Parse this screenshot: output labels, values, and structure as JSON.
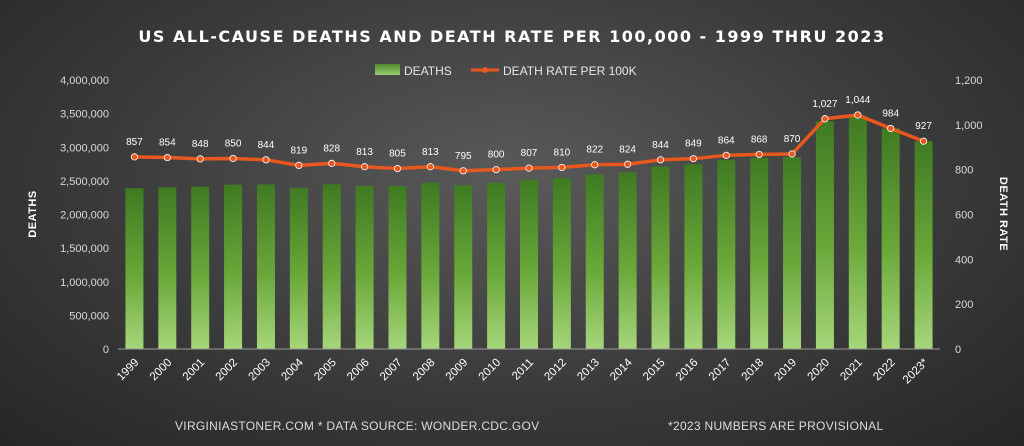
{
  "chart_data": {
    "type": "bar-line-combo",
    "title": "US ALL-CAUSE DEATHS AND DEATH RATE PER 100,000 - 1999 THRU 2023",
    "categories": [
      "1999",
      "2000",
      "2001",
      "2002",
      "2003",
      "2004",
      "2005",
      "2006",
      "2007",
      "2008",
      "2009",
      "2010",
      "2011",
      "2012",
      "2013",
      "2014",
      "2015",
      "2016",
      "2017",
      "2018",
      "2019",
      "2020",
      "2021",
      "2022",
      "2023*"
    ],
    "series": [
      {
        "name": "DEATHS",
        "type": "bar",
        "axis": "left",
        "color": "#6fae3a",
        "values": [
          2391399,
          2403351,
          2416425,
          2443387,
          2448288,
          2397615,
          2448017,
          2426264,
          2423712,
          2471984,
          2437163,
          2468435,
          2515458,
          2543279,
          2596993,
          2626418,
          2712630,
          2744248,
          2813503,
          2839205,
          2854838,
          3383729,
          3464231,
          3279857,
          3090964
        ]
      },
      {
        "name": "DEATH RATE PER 100K",
        "type": "line",
        "axis": "right",
        "color": "#e8571e",
        "values": [
          857,
          854,
          848,
          850,
          844,
          819,
          828,
          813,
          805,
          813,
          795,
          800,
          807,
          810,
          822,
          824,
          844,
          849,
          864,
          868,
          870,
          1027,
          1044,
          984,
          927
        ],
        "labels": [
          "857",
          "854",
          "848",
          "850",
          "844",
          "819",
          "828",
          "813",
          "805",
          "813",
          "795",
          "800",
          "807",
          "810",
          "822",
          "824",
          "844",
          "849",
          "864",
          "868",
          "870",
          "1,027",
          "1,044",
          "984",
          "927"
        ]
      }
    ],
    "ylabel": "DEATHS",
    "y2label": "DEATH RATE",
    "ylim": [
      0,
      4000000
    ],
    "y2lim": [
      0,
      1200
    ],
    "yticks": [
      "0",
      "500,000",
      "1,000,000",
      "1,500,000",
      "2,000,000",
      "2,500,000",
      "3,000,000",
      "3,500,000",
      "4,000,000"
    ],
    "y2ticks": [
      "0",
      "200",
      "400",
      "600",
      "800",
      "1,000",
      "1,200"
    ],
    "grid": false,
    "legend_position": "top-center"
  },
  "footer": {
    "source": "VIRGINIASTONER.COM * DATA SOURCE: WONDER.CDC.GOV",
    "note": "*2023 NUMBERS ARE PROVISIONAL"
  }
}
